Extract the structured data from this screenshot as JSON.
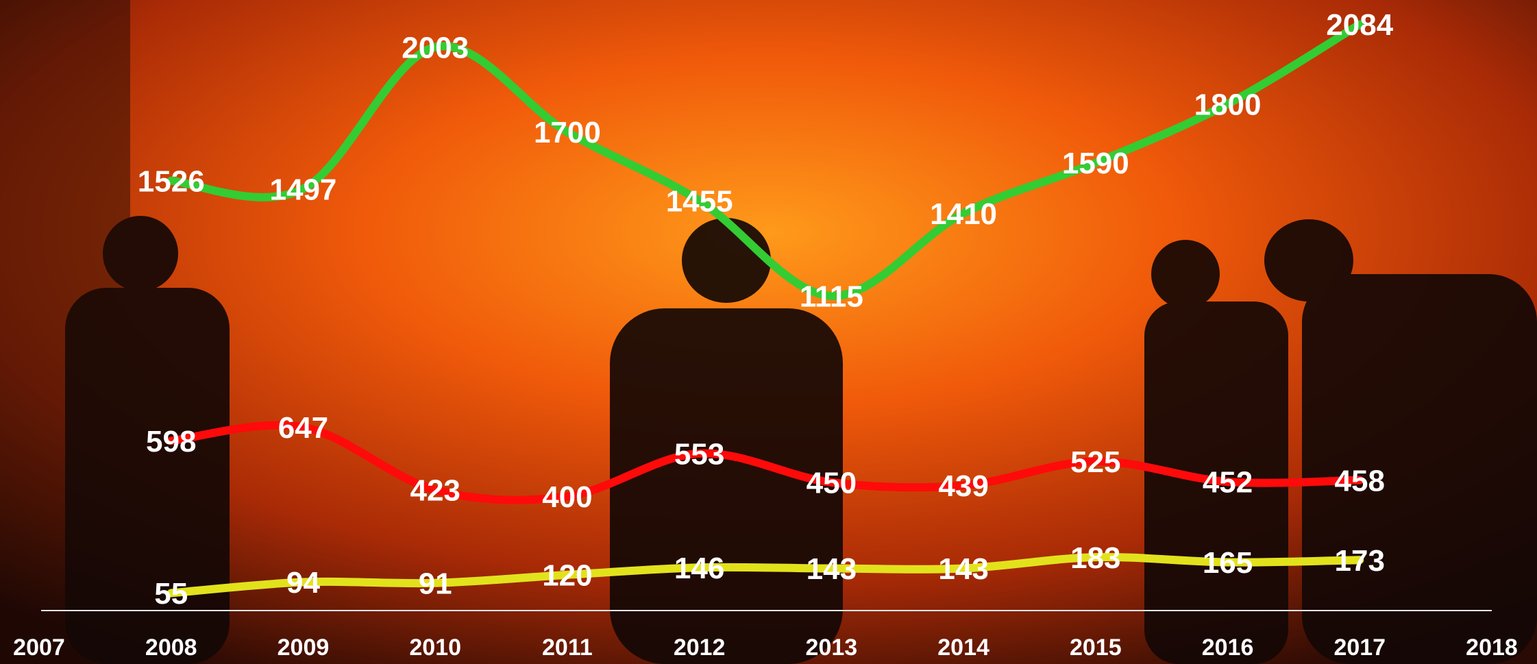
{
  "chart_data": {
    "type": "line",
    "categories": [
      "2007",
      "2008",
      "2009",
      "2010",
      "2011",
      "2012",
      "2013",
      "2014",
      "2015",
      "2016",
      "2017",
      "2018"
    ],
    "series": [
      {
        "color": "#33cc33",
        "values": [
          null,
          1526,
          1497,
          2003,
          1700,
          1455,
          1115,
          1410,
          1590,
          1800,
          2084,
          null
        ]
      },
      {
        "color": "#ff0a0a",
        "values": [
          null,
          598,
          647,
          423,
          400,
          553,
          450,
          439,
          525,
          452,
          458,
          null
        ]
      },
      {
        "color": "#e2e21c",
        "values": [
          null,
          55,
          94,
          91,
          120,
          146,
          143,
          143,
          183,
          165,
          173,
          null
        ]
      }
    ],
    "ylim": [
      0,
      2100
    ],
    "grid": false
  }
}
